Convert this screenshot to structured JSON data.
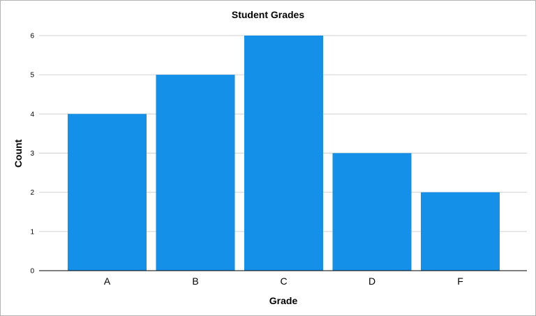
{
  "chart_data": {
    "type": "bar",
    "title": "Student Grades",
    "xlabel": "Grade",
    "ylabel": "Count",
    "categories": [
      "A",
      "B",
      "C",
      "D",
      "F"
    ],
    "values": [
      4,
      5,
      6,
      3,
      2
    ],
    "ylim": [
      0,
      6
    ],
    "yticks": [
      0,
      1,
      2,
      3,
      4,
      5,
      6
    ],
    "grid": "horizontal",
    "bar_color": "#1490e8",
    "grid_color": "#d0d0d0",
    "axis_color": "#000000"
  }
}
